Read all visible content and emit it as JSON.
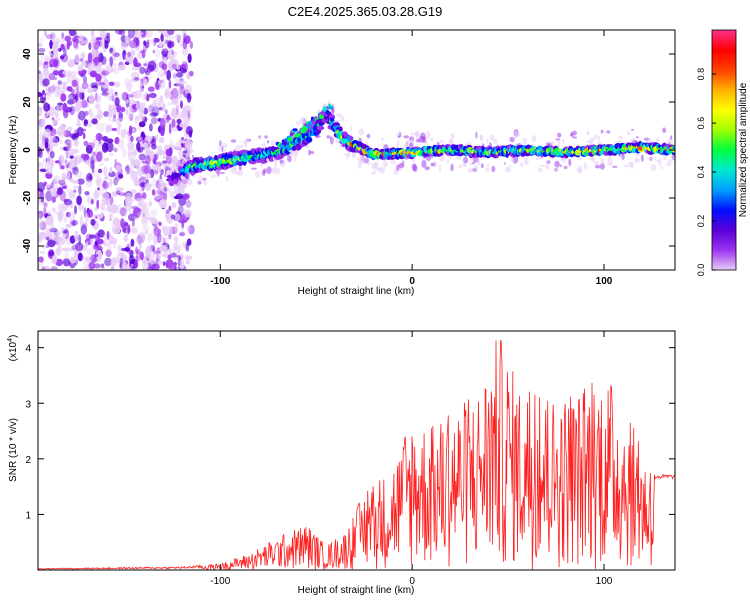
{
  "title": "C2E4.2025.365.03.28.G19",
  "chart_data": [
    {
      "type": "heatmap",
      "name": "spectrogram",
      "xlabel": "Height of straight line (km)",
      "ylabel": "Frequency (Hz)",
      "xlim": [
        -195,
        137
      ],
      "ylim": [
        -50,
        50
      ],
      "x_ticks": [
        -100,
        0,
        100
      ],
      "x_tick_labels": [
        "-100",
        "0",
        "100"
      ],
      "y_ticks": [
        -40,
        -20,
        0,
        20,
        40
      ],
      "y_tick_labels": [
        "-40",
        "-20",
        "0",
        "20",
        "40"
      ],
      "colorbar": {
        "label": "Normalized spectral amplitude",
        "range": [
          0,
          0.98
        ],
        "ticks": [
          0,
          0.2,
          0.4,
          0.6,
          0.8
        ],
        "tick_labels": [
          "0.0",
          "0.2",
          "0.4",
          "0.6",
          "0.8"
        ],
        "colors": [
          "#e6ccf7",
          "#9b33f0",
          "#5a00d8",
          "#0010ff",
          "#00a0ff",
          "#00e8d0",
          "#00ff40",
          "#a0ff00",
          "#ffff00",
          "#ffb000",
          "#ff4000",
          "#ff0000",
          "#ff3090"
        ]
      },
      "frequency_track": [
        {
          "x": -125,
          "f": -12,
          "amp": 0.3
        },
        {
          "x": -115,
          "f": -7,
          "amp": 0.6
        },
        {
          "x": -100,
          "f": -5,
          "amp": 0.75
        },
        {
          "x": -85,
          "f": -3,
          "amp": 0.6
        },
        {
          "x": -70,
          "f": -1,
          "amp": 0.55
        },
        {
          "x": -60,
          "f": 3,
          "amp": 0.6
        },
        {
          "x": -50,
          "f": 8,
          "amp": 0.5
        },
        {
          "x": -45,
          "f": 15,
          "amp": 0.35
        },
        {
          "x": -35,
          "f": 4,
          "amp": 0.8
        },
        {
          "x": -20,
          "f": -2,
          "amp": 0.9
        },
        {
          "x": 0,
          "f": -1,
          "amp": 0.85
        },
        {
          "x": 20,
          "f": 0,
          "amp": 0.75
        },
        {
          "x": 40,
          "f": -1,
          "amp": 0.7
        },
        {
          "x": 60,
          "f": 0,
          "amp": 0.75
        },
        {
          "x": 80,
          "f": -1,
          "amp": 0.8
        },
        {
          "x": 100,
          "f": 0,
          "amp": 0.85
        },
        {
          "x": 120,
          "f": 1,
          "amp": 0.95
        },
        {
          "x": 135,
          "f": 0,
          "amp": 0.9
        }
      ],
      "noise_region_x": [
        -195,
        -115
      ]
    },
    {
      "type": "line",
      "name": "snr",
      "xlabel": "Height of straight line (km)",
      "ylabel": "SNR (10 * v/v)",
      "y_scale_label": "(x10",
      "y_scale_exp": "4",
      "xlim": [
        -195,
        137
      ],
      "ylim": [
        0,
        4.3
      ],
      "x_ticks": [
        -100,
        0,
        100
      ],
      "x_tick_labels": [
        "-100",
        "0",
        "100"
      ],
      "y_ticks": [
        1,
        2,
        3,
        4
      ],
      "y_tick_labels": [
        "1",
        "2",
        "3",
        "4"
      ],
      "color": "#ff2020",
      "envelope": [
        {
          "x": -195,
          "v": 0.03
        },
        {
          "x": -120,
          "v": 0.06
        },
        {
          "x": -100,
          "v": 0.12
        },
        {
          "x": -85,
          "v": 0.3
        },
        {
          "x": -70,
          "v": 0.6
        },
        {
          "x": -55,
          "v": 0.85
        },
        {
          "x": -45,
          "v": 0.45
        },
        {
          "x": -35,
          "v": 0.7
        },
        {
          "x": -25,
          "v": 1.4
        },
        {
          "x": -15,
          "v": 1.7
        },
        {
          "x": -5,
          "v": 2.3
        },
        {
          "x": 0,
          "v": 2.8
        },
        {
          "x": 10,
          "v": 2.6
        },
        {
          "x": 25,
          "v": 3.0
        },
        {
          "x": 35,
          "v": 3.3
        },
        {
          "x": 45,
          "v": 4.3
        },
        {
          "x": 55,
          "v": 3.4
        },
        {
          "x": 70,
          "v": 3.1
        },
        {
          "x": 85,
          "v": 3.2
        },
        {
          "x": 100,
          "v": 3.6
        },
        {
          "x": 110,
          "v": 3.0
        },
        {
          "x": 120,
          "v": 2.2
        },
        {
          "x": 125,
          "v": 1.7
        },
        {
          "x": 137,
          "v": 1.68
        }
      ],
      "flat_tail": {
        "x_start": 126,
        "value": 1.68
      }
    }
  ]
}
